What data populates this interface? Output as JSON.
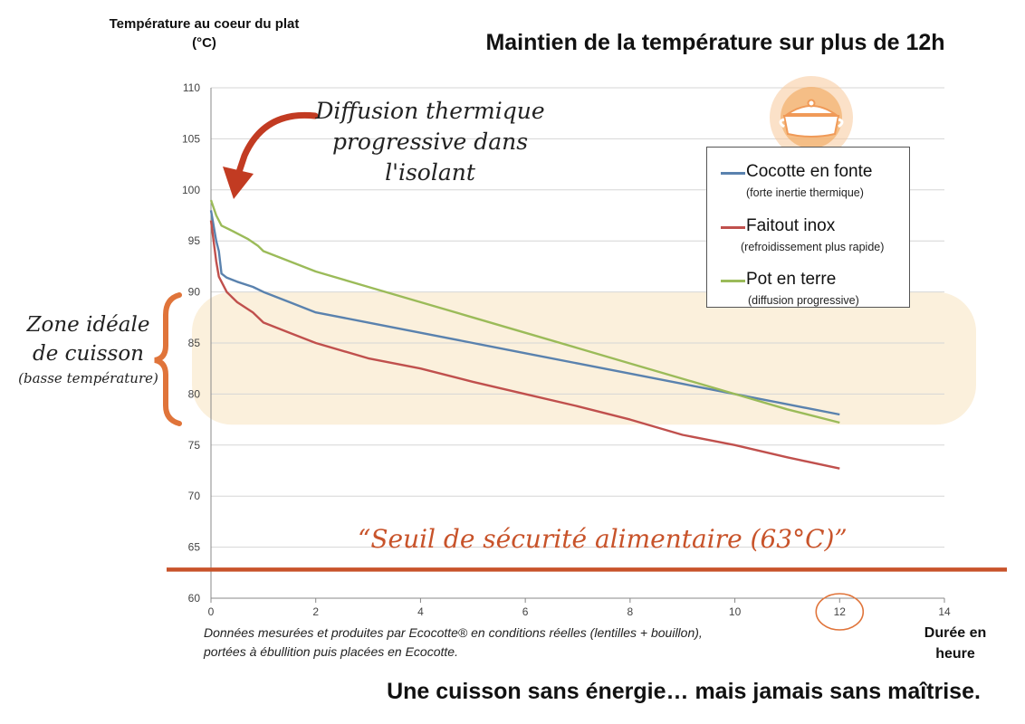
{
  "chart_data": {
    "type": "line",
    "title": "Maintien de la température sur plus de 12h",
    "ylabel": "Température au coeur du plat (°C)",
    "xlabel": "Durée en heure",
    "xlim": [
      0,
      14
    ],
    "ylim": [
      60,
      110
    ],
    "xticks": [
      "0",
      "2",
      "4",
      "6",
      "8",
      "10",
      "12",
      "14"
    ],
    "yticks": [
      "60",
      "65",
      "70",
      "75",
      "80",
      "85",
      "90",
      "95",
      "100",
      "105",
      "110"
    ],
    "grid": true,
    "legend_position": "top-right",
    "series": [
      {
        "name": "Cocotte en fonte",
        "subtitle": "(forte inertie thermique)",
        "color": "#5a82ae",
        "x": [
          0,
          0.1,
          0.15,
          0.2,
          0.3,
          0.5,
          0.8,
          1.0,
          1.5,
          2.0,
          3.0,
          4.0,
          5.0,
          6.0,
          7.0,
          8.0,
          9.0,
          10.0,
          11.0,
          12.0
        ],
        "y": [
          98,
          95,
          94,
          91.8,
          91.4,
          91,
          90.5,
          90,
          89,
          88,
          87,
          86,
          85,
          84,
          83,
          82,
          81,
          80,
          79,
          78
        ]
      },
      {
        "name": "Faitout inox",
        "subtitle": "(refroidissement plus rapide)",
        "color": "#c0504d",
        "x": [
          0,
          0.1,
          0.15,
          0.2,
          0.3,
          0.5,
          0.8,
          1.0,
          1.5,
          2.0,
          3.0,
          4.0,
          5.0,
          6.0,
          7.0,
          8.0,
          9.0,
          10.0,
          11.0,
          12.0
        ],
        "y": [
          97,
          93,
          91.5,
          91,
          90,
          89,
          88,
          87,
          86,
          85,
          83.5,
          82.5,
          81.2,
          80,
          78.8,
          77.5,
          76,
          75,
          73.8,
          72.7
        ]
      },
      {
        "name": "Pot en terre",
        "subtitle": "(diffusion progressive)",
        "color": "#9bbb59",
        "x": [
          0,
          0.1,
          0.2,
          0.4,
          0.7,
          0.9,
          1.0,
          1.5,
          2.0,
          3.0,
          4.0,
          5.0,
          6.0,
          7.0,
          8.0,
          9.0,
          10.0,
          11.0,
          12.0
        ],
        "y": [
          99,
          97.5,
          96.5,
          96,
          95.2,
          94.5,
          94,
          93,
          92,
          90.5,
          89,
          87.5,
          86,
          84.5,
          83,
          81.5,
          80,
          78.5,
          77.2
        ]
      }
    ],
    "annotations": {
      "diffusion": [
        "Diffusion thermique",
        "progressive dans l'isolant"
      ],
      "zone": [
        "Zone idéale",
        "de cuisson",
        "(basse température)"
      ],
      "zone_range": [
        77,
        90
      ],
      "threshold_text": "“Seuil de sécurité alimentaire (63°C)”",
      "threshold_value": 62.8,
      "circled_tick": "12"
    }
  },
  "footnote": [
    "Données mesurées et produites par Ecocotte® en conditions réelles (lentilles + bouillon),",
    "portées à ébullition puis placées en Ecocotte."
  ],
  "tagline": "Une cuisson sans énergie… mais jamais sans maîtrise.",
  "colors": {
    "zone_fill": "#fbf0dc",
    "accent_orange": "#e0743a",
    "threshold_red": "#c8532a",
    "arrow_red": "#c23b22",
    "grid": "#d6d6d6",
    "logo_orange": "#f2a65a"
  },
  "icons": {
    "logo": "cocotte-pot-icon"
  }
}
